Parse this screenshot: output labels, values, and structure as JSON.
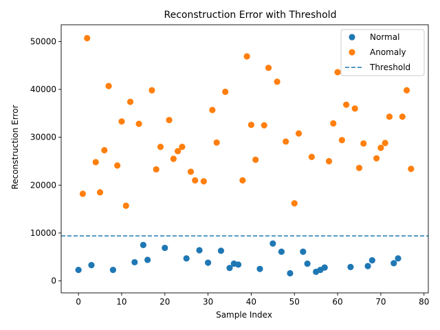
{
  "chart_data": {
    "type": "scatter",
    "title": "Reconstruction Error with Threshold",
    "xlabel": "Sample Index",
    "ylabel": "Reconstruction Error",
    "xlim": [
      -4,
      81
    ],
    "ylim": [
      -2500,
      53500
    ],
    "xticks": [
      0,
      10,
      20,
      30,
      40,
      50,
      60,
      70,
      80
    ],
    "yticks": [
      0,
      10000,
      20000,
      30000,
      40000,
      50000
    ],
    "grid": false,
    "legend_position": "top-right",
    "threshold": 9400,
    "series": [
      {
        "name": "Normal",
        "color": "#1f77b4",
        "points": [
          [
            0,
            2300
          ],
          [
            3,
            3300
          ],
          [
            8,
            2300
          ],
          [
            13,
            3900
          ],
          [
            15,
            7500
          ],
          [
            16,
            4400
          ],
          [
            20,
            6900
          ],
          [
            25,
            4700
          ],
          [
            28,
            6400
          ],
          [
            30,
            3800
          ],
          [
            33,
            6300
          ],
          [
            35,
            2700
          ],
          [
            36,
            3600
          ],
          [
            37,
            3400
          ],
          [
            42,
            2500
          ],
          [
            45,
            7800
          ],
          [
            47,
            6100
          ],
          [
            49,
            1600
          ],
          [
            52,
            6100
          ],
          [
            53,
            3600
          ],
          [
            55,
            1900
          ],
          [
            56,
            2300
          ],
          [
            57,
            2800
          ],
          [
            63,
            2900
          ],
          [
            67,
            3100
          ],
          [
            68,
            4300
          ],
          [
            73,
            3700
          ],
          [
            74,
            4700
          ]
        ]
      },
      {
        "name": "Anomaly",
        "color": "#ff7f0e",
        "points": [
          [
            1,
            18200
          ],
          [
            2,
            50700
          ],
          [
            4,
            24800
          ],
          [
            5,
            18500
          ],
          [
            6,
            27300
          ],
          [
            7,
            40700
          ],
          [
            9,
            24100
          ],
          [
            10,
            33300
          ],
          [
            11,
            15700
          ],
          [
            12,
            37400
          ],
          [
            14,
            32800
          ],
          [
            17,
            39800
          ],
          [
            18,
            23300
          ],
          [
            19,
            28000
          ],
          [
            21,
            33600
          ],
          [
            22,
            25500
          ],
          [
            23,
            27100
          ],
          [
            24,
            28000
          ],
          [
            26,
            22800
          ],
          [
            27,
            21000
          ],
          [
            29,
            20800
          ],
          [
            31,
            35700
          ],
          [
            32,
            28900
          ],
          [
            34,
            39500
          ],
          [
            38,
            21000
          ],
          [
            39,
            46900
          ],
          [
            40,
            32600
          ],
          [
            41,
            25300
          ],
          [
            43,
            32500
          ],
          [
            44,
            44500
          ],
          [
            46,
            41600
          ],
          [
            48,
            29100
          ],
          [
            50,
            16200
          ],
          [
            51,
            30800
          ],
          [
            54,
            25900
          ],
          [
            58,
            25000
          ],
          [
            59,
            32900
          ],
          [
            60,
            43600
          ],
          [
            61,
            29400
          ],
          [
            62,
            36800
          ],
          [
            64,
            36000
          ],
          [
            65,
            23600
          ],
          [
            66,
            28700
          ],
          [
            69,
            25600
          ],
          [
            70,
            27800
          ],
          [
            71,
            28800
          ],
          [
            72,
            34300
          ],
          [
            75,
            34300
          ],
          [
            76,
            39800
          ],
          [
            77,
            23400
          ]
        ]
      }
    ],
    "threshold_line": {
      "name": "Threshold",
      "color": "#1f77b4",
      "style": "dashed"
    }
  }
}
